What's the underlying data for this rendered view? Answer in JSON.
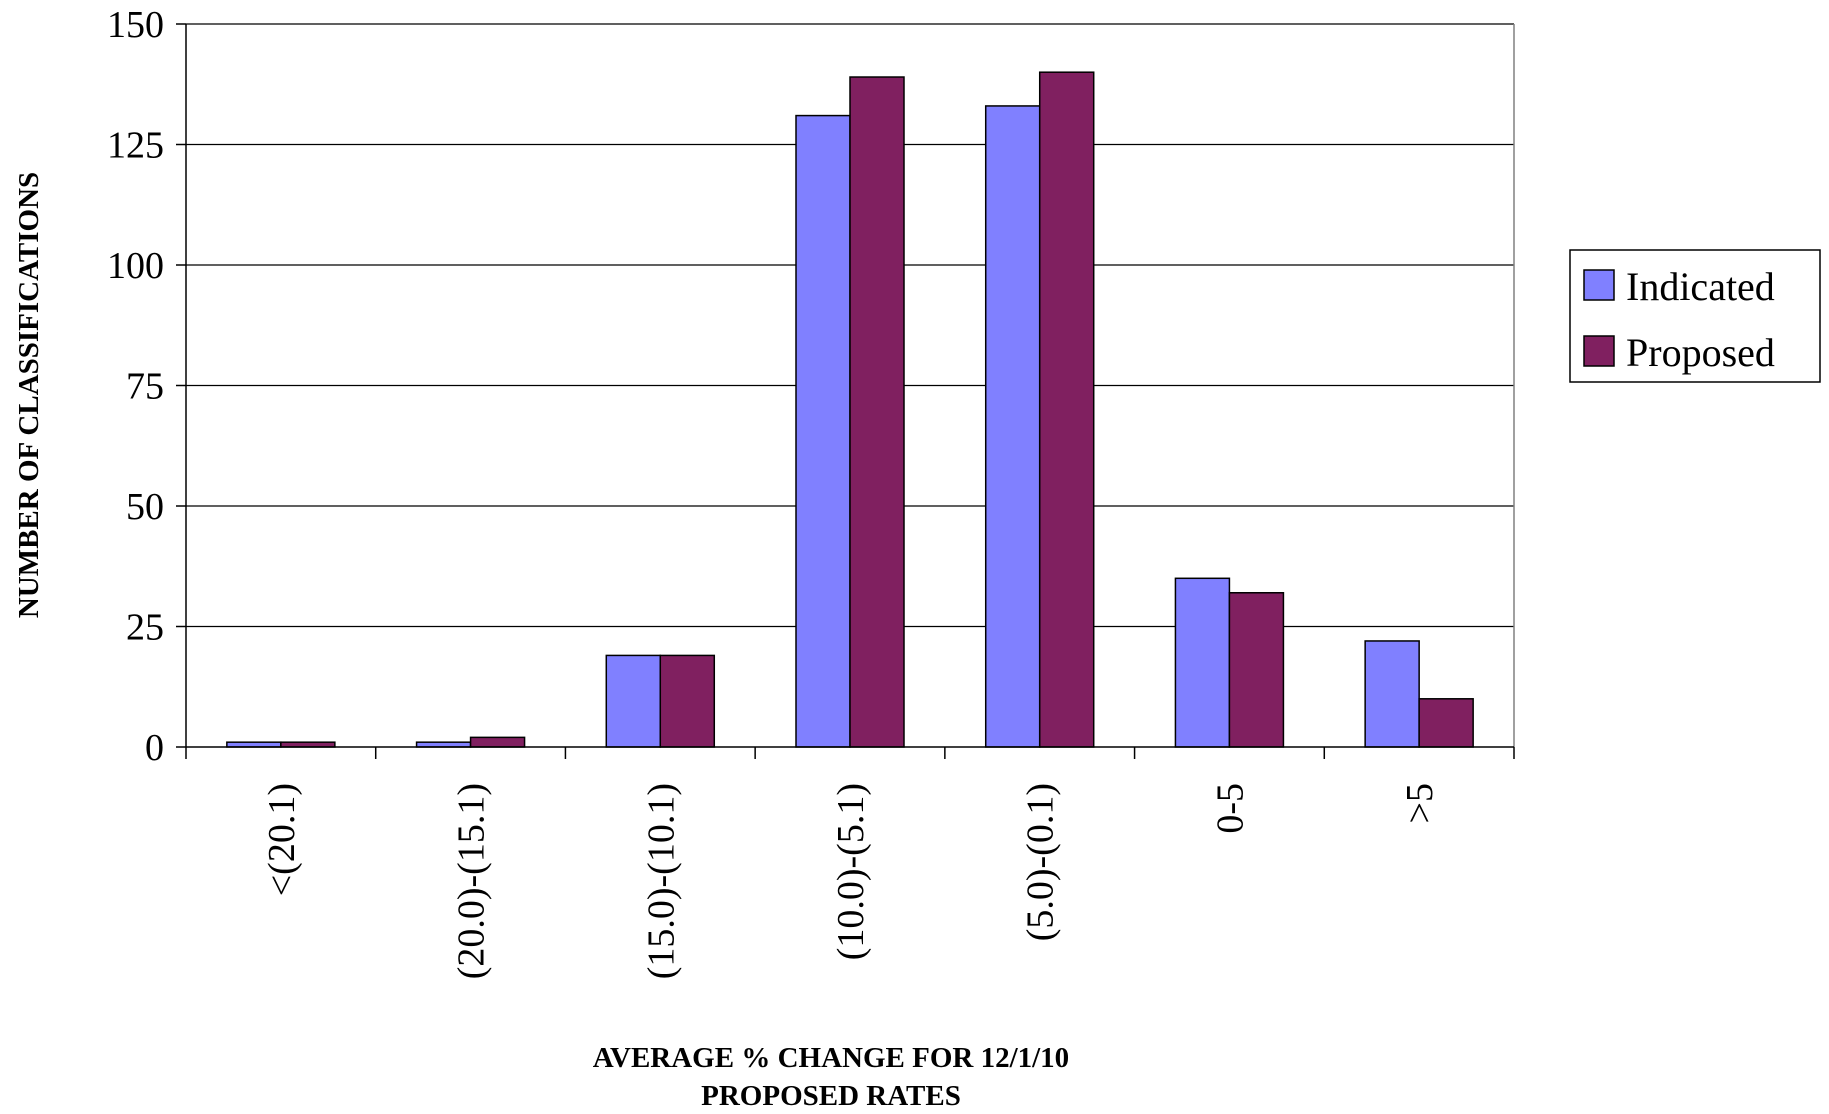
{
  "chart_data": {
    "type": "bar",
    "categories": [
      "<(20.1)",
      "(20.0)-(15.1)",
      "(15.0)-(10.1)",
      "(10.0)-(5.1)",
      "(5.0)-(0.1)",
      "0-5",
      ">5"
    ],
    "series": [
      {
        "name": "Indicated",
        "color": "#8080ff",
        "values": [
          1,
          1,
          19,
          131,
          133,
          35,
          22
        ]
      },
      {
        "name": "Proposed",
        "color": "#802060",
        "values": [
          1,
          2,
          19,
          139,
          140,
          32,
          10
        ]
      }
    ],
    "ylim": [
      0,
      150
    ],
    "yticks": [
      0,
      25,
      50,
      75,
      100,
      125,
      150
    ],
    "ylabel": "NUMBER OF CLASSIFICATIONS",
    "xlabel_lines": [
      "AVERAGE % CHANGE FOR 12/1/10",
      "PROPOSED RATES"
    ],
    "grid": true,
    "legend_position": "right"
  }
}
